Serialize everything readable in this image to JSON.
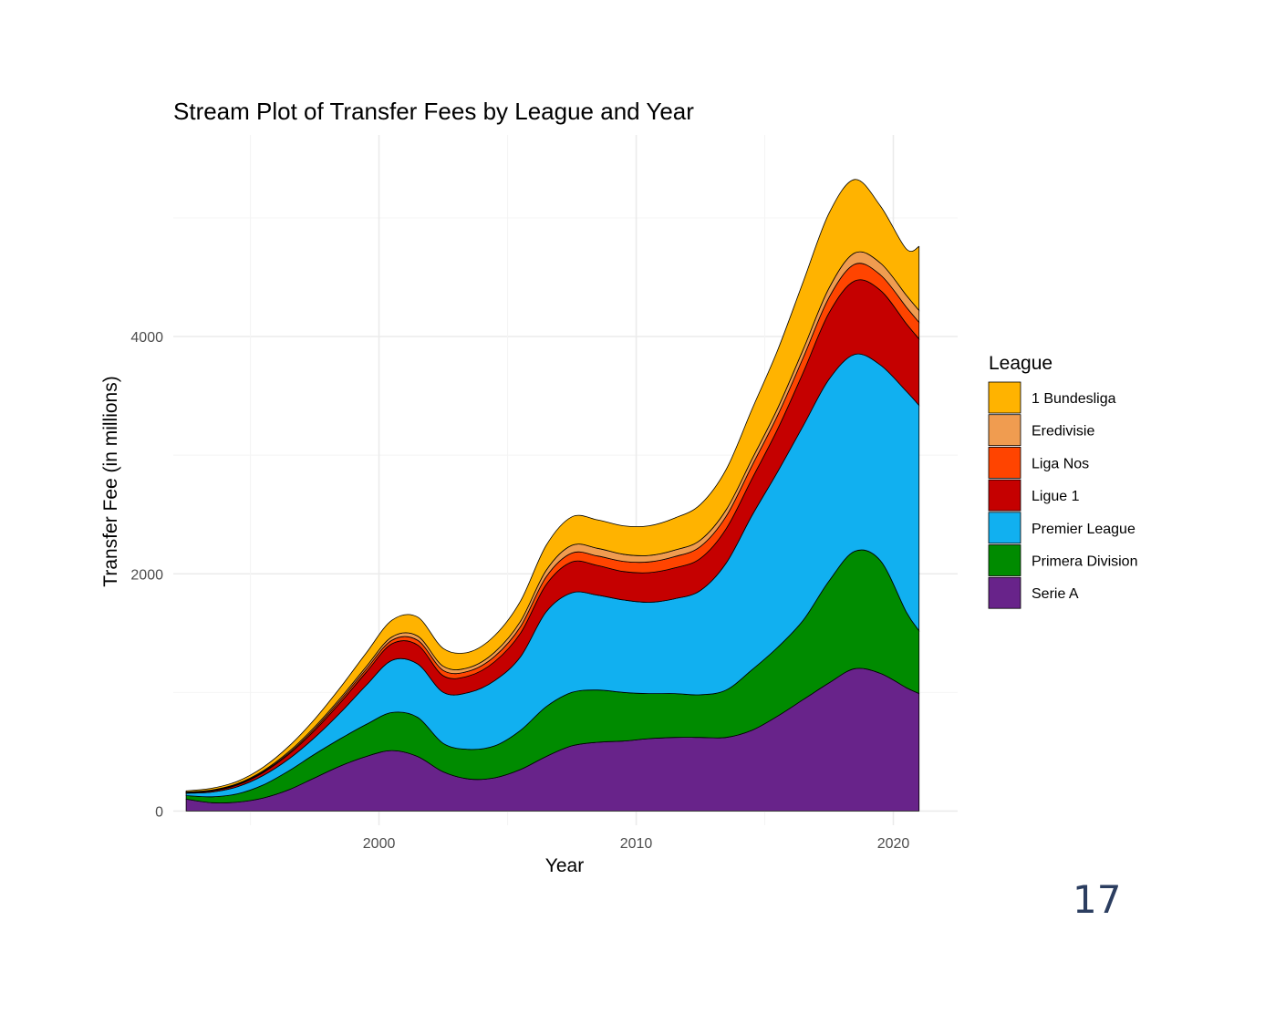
{
  "page_number": "17",
  "chart_data": {
    "type": "area",
    "title": "Stream Plot of Transfer Fees by League and Year",
    "xlabel": "Year",
    "ylabel": "Transfer Fee (in millions)",
    "xlim": [
      1992,
      2022.5
    ],
    "ylim": [
      -120,
      5700
    ],
    "x_ticks": [
      2000,
      2010,
      2020
    ],
    "y_ticks": [
      0,
      2000,
      4000
    ],
    "grid": true,
    "legend_title": "League",
    "legend_position": "right",
    "x": [
      1992.5,
      1993.5,
      1994.5,
      1995.5,
      1996.5,
      1997.5,
      1998.5,
      1999.5,
      2000.5,
      2001.5,
      2002.5,
      2003.5,
      2004.5,
      2005.5,
      2006.5,
      2007.5,
      2008.5,
      2009.5,
      2010.5,
      2011.5,
      2012.5,
      2013.5,
      2014.5,
      2015.5,
      2016.5,
      2017.5,
      2018.5,
      2019.5,
      2020.5,
      2021
    ],
    "series": [
      {
        "name": "Serie A",
        "color": "#68238a",
        "values": [
          100,
          70,
          75,
          110,
          180,
          280,
          380,
          460,
          510,
          460,
          330,
          270,
          280,
          350,
          460,
          550,
          580,
          590,
          610,
          620,
          620,
          620,
          680,
          800,
          940,
          1080,
          1200,
          1160,
          1040,
          990
        ]
      },
      {
        "name": "Primera Division",
        "color": "#008b00",
        "values": [
          30,
          50,
          70,
          110,
          160,
          200,
          230,
          270,
          320,
          330,
          240,
          250,
          270,
          330,
          420,
          450,
          440,
          410,
          380,
          370,
          360,
          400,
          510,
          580,
          670,
          860,
          990,
          950,
          640,
          530
        ]
      },
      {
        "name": "Premier League",
        "color": "#11b0f0",
        "values": [
          20,
          40,
          60,
          80,
          100,
          140,
          220,
          330,
          440,
          450,
          430,
          480,
          550,
          620,
          800,
          840,
          800,
          780,
          770,
          800,
          880,
          1070,
          1300,
          1480,
          1640,
          1700,
          1660,
          1650,
          1860,
          1900
        ]
      },
      {
        "name": "Ligue 1",
        "color": "#c50000",
        "values": [
          5,
          10,
          15,
          25,
          40,
          60,
          85,
          110,
          140,
          160,
          140,
          140,
          160,
          200,
          230,
          260,
          250,
          240,
          250,
          260,
          270,
          290,
          310,
          360,
          450,
          560,
          620,
          630,
          570,
          560
        ]
      },
      {
        "name": "Liga Nos",
        "color": "#ff4400",
        "values": [
          2,
          3,
          5,
          7,
          10,
          15,
          20,
          25,
          30,
          40,
          45,
          40,
          45,
          55,
          65,
          75,
          80,
          85,
          90,
          95,
          100,
          105,
          110,
          115,
          125,
          130,
          140,
          130,
          140,
          140
        ]
      },
      {
        "name": "Eredivisie",
        "color": "#f09c50",
        "values": [
          3,
          4,
          6,
          8,
          12,
          15,
          18,
          22,
          28,
          35,
          35,
          30,
          35,
          45,
          55,
          65,
          65,
          60,
          55,
          55,
          55,
          55,
          55,
          60,
          70,
          80,
          95,
          100,
          100,
          100
        ]
      },
      {
        "name": "1 Bundesliga",
        "color": "#ffb300",
        "values": [
          10,
          15,
          20,
          30,
          45,
          65,
          90,
          115,
          140,
          160,
          150,
          130,
          140,
          170,
          210,
          240,
          240,
          240,
          250,
          270,
          300,
          340,
          420,
          490,
          570,
          630,
          620,
          480,
          390,
          540
        ]
      }
    ]
  }
}
